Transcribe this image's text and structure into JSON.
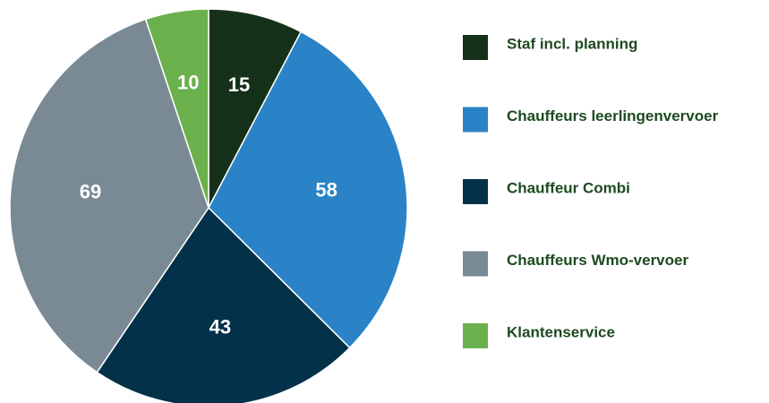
{
  "chart_data": {
    "type": "pie",
    "categories": [
      "Staf incl. planning",
      "Chauffeurs leerlingenvervoer",
      "Chauffeur Combi",
      "Chauffeurs Wmo-vervoer",
      "Klantenservice"
    ],
    "values": [
      15,
      58,
      43,
      69,
      10
    ],
    "colors": [
      "#16311a",
      "#2a83c6",
      "#04314a",
      "#7a8a94",
      "#6ab14d"
    ],
    "legend": "right"
  }
}
